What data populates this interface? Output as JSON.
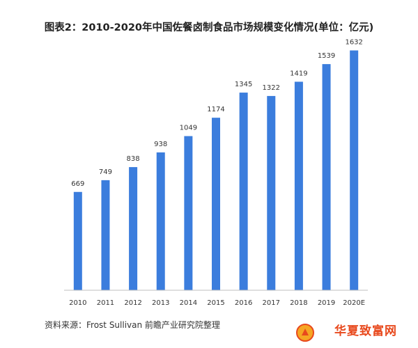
{
  "title": "图表2：2010-2020年中国佐餐卤制食品市场规模变化情况(单位：亿元)",
  "source": "资料来源：Frost Sullivan 前瞻产业研究院整理",
  "watermark": "华夏致富网",
  "colors": {
    "bar": "#3b7ddd",
    "axis": "#bfbfbf",
    "text": "#333333",
    "watermark": "#e8491d"
  },
  "chart_data": {
    "type": "bar",
    "title": "图表2：2010-2020年中国佐餐卤制食品市场规模变化情况(单位：亿元)",
    "categories": [
      "2010",
      "2011",
      "2012",
      "2013",
      "2014",
      "2015",
      "2016",
      "2017",
      "2018",
      "2019",
      "2020E"
    ],
    "values": [
      669,
      749,
      838,
      938,
      1049,
      1174,
      1345,
      1322,
      1419,
      1539,
      1632
    ],
    "xlabel": "",
    "ylabel": "",
    "ylim": [
      0,
      1800
    ],
    "grid": false,
    "data_labels": true
  }
}
